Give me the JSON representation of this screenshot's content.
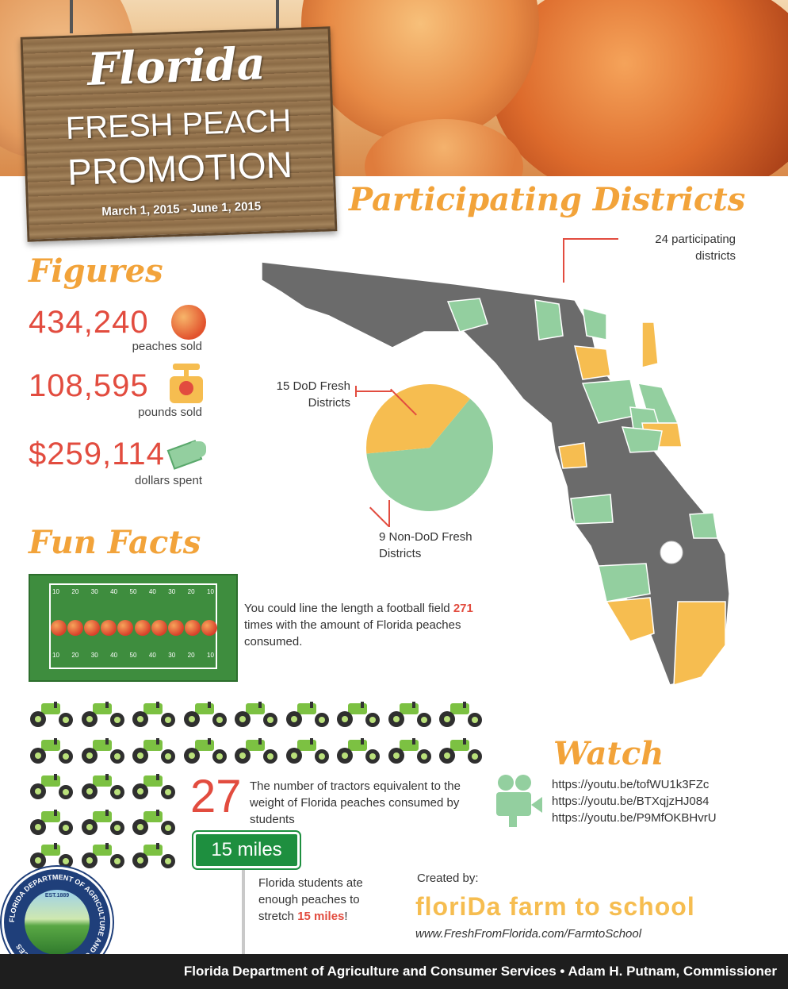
{
  "header": {
    "script_title": "Florida",
    "title_line1": "FRESH PEACH",
    "title_line2": "PROMOTION",
    "dates": "March 1, 2015 - June 1, 2015"
  },
  "figures": {
    "heading": "Figures",
    "items": [
      {
        "value": "434,240",
        "label": "peaches sold",
        "icon": "peach-icon"
      },
      {
        "value": "108,595",
        "label": "pounds sold",
        "icon": "scale-icon"
      },
      {
        "value": "$259,114",
        "label": "dollars spent",
        "icon": "money-icon"
      }
    ]
  },
  "districts": {
    "heading": "Participating Districts",
    "callout_total": "24 participating districts",
    "callout_dod": "15 DoD Fresh Districts",
    "callout_nondod": "9 Non-DoD Fresh Districts",
    "colors": {
      "dod": "#93cf9f",
      "nondod": "#f6bd50",
      "none": "#6b6b6b"
    }
  },
  "chart_data": {
    "type": "pie",
    "title": "",
    "slices": [
      {
        "label": "15 DoD Fresh Districts",
        "value": 15,
        "color": "#93cf9f"
      },
      {
        "label": "9 Non-DoD Fresh Districts",
        "value": 9,
        "color": "#f6bd50"
      }
    ]
  },
  "fun_facts": {
    "heading": "Fun Facts",
    "football_pre": "You could line the length a football field ",
    "football_num": "271",
    "football_post": " times with the amount of Florida peaches consumed.",
    "yard_top": [
      "10",
      "20",
      "30",
      "40",
      "50",
      "40",
      "30",
      "20",
      "10"
    ],
    "yard_bottom": [
      "10",
      "20",
      "30",
      "40",
      "50",
      "40",
      "30",
      "20",
      "10"
    ],
    "tractor_count": "27",
    "tractor_text": "The number of tractors equivalent to the weight of Florida peaches consumed by students",
    "road_sign": "15 miles",
    "miles_pre": "Florida students ate enough peaches to stretch ",
    "miles_num": "15 miles",
    "miles_post": "!"
  },
  "watch": {
    "heading": "Watch",
    "links": [
      "https://youtu.be/tofWU1k3FZc",
      "https://youtu.be/BTXqjzHJ084",
      "https://youtu.be/P9MfOKBHvrU"
    ]
  },
  "credits": {
    "created_by": "Created by:",
    "brand": "floriDa farm to school",
    "url": "www.FreshFromFlorida.com/FarmtoSchool"
  },
  "seal": {
    "ring_text": "FLORIDA DEPARTMENT OF AGRICULTURE AND CONSUMER SERVICES",
    "est": "EST.1889"
  },
  "footer": {
    "text": "Florida Department of Agriculture and Consumer Services  •  Adam H. Putnam, Commissioner"
  }
}
